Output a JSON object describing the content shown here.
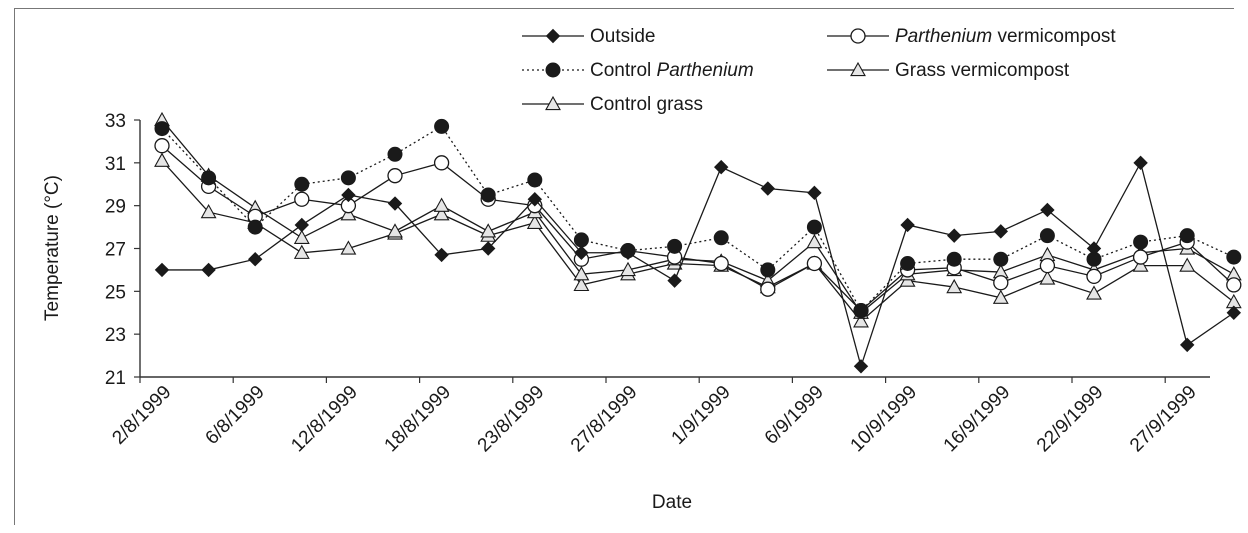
{
  "chart_data": {
    "type": "line",
    "xlabel": "Date",
    "ylabel": "Temperature (°C)",
    "ylim": [
      21,
      33
    ],
    "yticks": [
      21,
      23,
      25,
      27,
      29,
      31,
      33
    ],
    "x_tick_labels": [
      "2/8/1999",
      "6/8/1999",
      "12/8/1999",
      "18/8/1999",
      "23/8/1999",
      "27/8/1999",
      "1/9/1999",
      "6/9/1999",
      "10/9/1999",
      "16/9/1999",
      "22/9/1999",
      "27/9/1999"
    ],
    "grid": false,
    "legend_position": "top",
    "legend": [
      {
        "series": 0,
        "parts": [
          {
            "text": "Outside",
            "italic": false
          }
        ]
      },
      {
        "series": 1,
        "parts": [
          {
            "text": "Control ",
            "italic": false
          },
          {
            "text": "Parthenium",
            "italic": true
          }
        ]
      },
      {
        "series": 4,
        "parts": [
          {
            "text": "Control grass",
            "italic": false
          }
        ]
      },
      {
        "series": 2,
        "parts": [
          {
            "text": "Parthenium",
            "italic": true
          },
          {
            "text": " vermicompost",
            "italic": false
          }
        ]
      },
      {
        "series": 3,
        "parts": [
          {
            "text": "Grass vermicompost",
            "italic": false
          }
        ]
      }
    ],
    "series": [
      {
        "name": "Outside",
        "marker": "diamond",
        "line": "solid",
        "values": [
          26.0,
          26.0,
          26.5,
          28.1,
          29.5,
          29.1,
          26.7,
          27.0,
          29.3,
          26.8,
          26.8,
          25.5,
          30.8,
          29.8,
          29.6,
          21.5,
          28.1,
          27.6,
          27.8,
          28.8,
          27.0,
          31.0,
          22.5,
          24.0
        ]
      },
      {
        "name": "Control Parthenium",
        "marker": "filled-circle",
        "line": "dotted",
        "values": [
          32.6,
          30.3,
          28.0,
          30.0,
          30.3,
          31.4,
          32.7,
          29.5,
          30.2,
          27.4,
          26.9,
          27.1,
          27.5,
          26.0,
          28.0,
          24.1,
          26.3,
          26.5,
          26.5,
          27.6,
          26.5,
          27.3,
          27.6,
          26.6
        ]
      },
      {
        "name": "Parthenium vermicompost",
        "marker": "open-circle",
        "line": "solid",
        "values": [
          31.8,
          29.9,
          28.5,
          29.3,
          29.0,
          30.4,
          31.0,
          29.3,
          29.0,
          26.5,
          26.9,
          26.6,
          26.3,
          25.1,
          26.3,
          24.1,
          26.0,
          26.1,
          25.4,
          26.2,
          25.7,
          26.6,
          27.3,
          25.3
        ]
      },
      {
        "name": "Grass vermicompost",
        "marker": "open-triangle",
        "line": "solid",
        "values": [
          31.1,
          28.7,
          28.2,
          26.8,
          27.0,
          27.7,
          28.6,
          27.6,
          28.2,
          25.3,
          25.8,
          26.3,
          26.2,
          25.2,
          26.3,
          23.6,
          25.5,
          25.2,
          24.7,
          25.6,
          24.9,
          26.2,
          26.2,
          24.5
        ]
      },
      {
        "name": "Control grass",
        "marker": "open-triangle",
        "line": "solid",
        "values": [
          33.0,
          30.4,
          28.9,
          27.5,
          28.6,
          27.8,
          29.0,
          27.8,
          28.7,
          25.8,
          26.0,
          26.5,
          26.4,
          25.5,
          27.3,
          24.0,
          25.8,
          26.0,
          25.9,
          26.7,
          26.0,
          26.8,
          27.0,
          25.8
        ]
      }
    ]
  }
}
